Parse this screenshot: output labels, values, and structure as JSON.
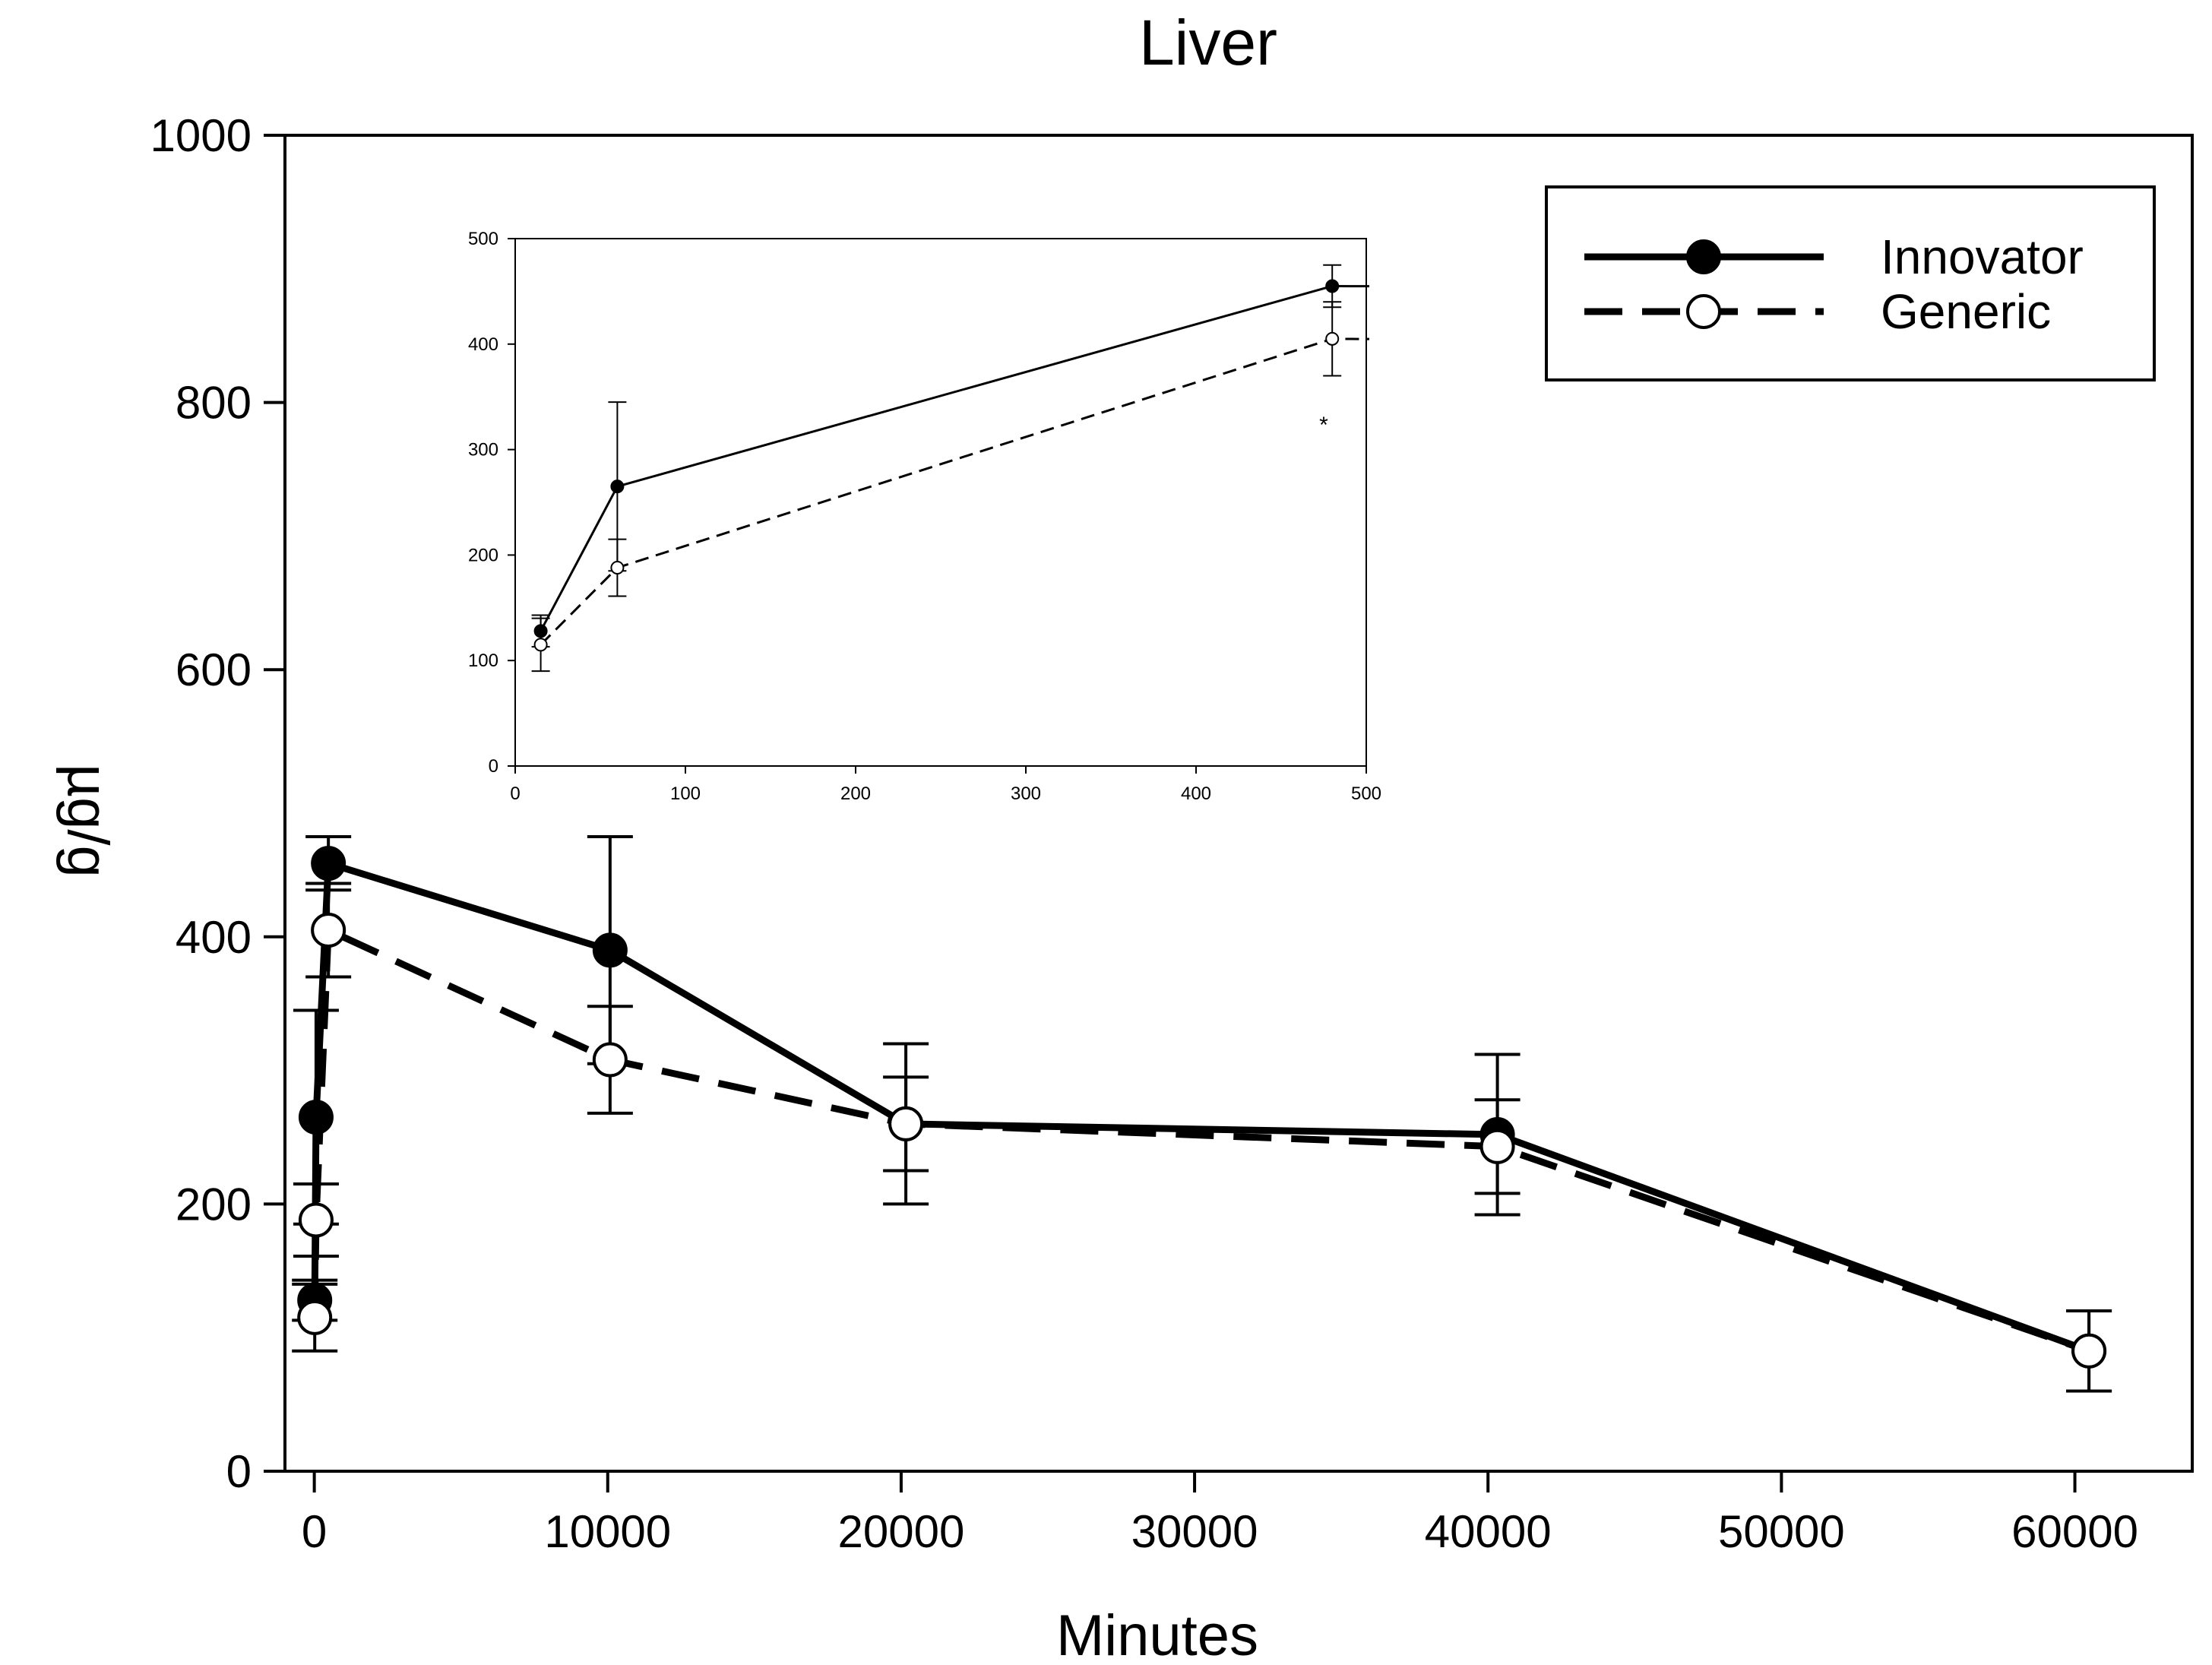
{
  "chart_data": {
    "type": "line",
    "title": "Liver",
    "xlabel": "Minutes",
    "ylabel": "µg/g",
    "xlim": [
      -1000,
      64000
    ],
    "ylim": [
      0,
      1000
    ],
    "xticks": [
      0,
      10000,
      20000,
      30000,
      40000,
      50000,
      60000
    ],
    "yticks": [
      0,
      200,
      400,
      600,
      800,
      1000
    ],
    "legend_position": "top-right",
    "series": [
      {
        "name": "Innovator",
        "style": "solid",
        "marker": "filled-circle",
        "x": [
          15,
          60,
          480,
          10080,
          20160,
          40320,
          60480
        ],
        "y": [
          128,
          265,
          455,
          390,
          260,
          252,
          90
        ],
        "err": [
          15,
          80,
          20,
          85,
          60,
          60,
          30
        ]
      },
      {
        "name": "Generic",
        "style": "dashed",
        "marker": "open-circle",
        "x": [
          15,
          60,
          480,
          10080,
          20160,
          40320,
          60480
        ],
        "y": [
          115,
          188,
          405,
          308,
          260,
          243,
          90
        ],
        "err": [
          25,
          27,
          35,
          40,
          35,
          35,
          30
        ]
      }
    ],
    "inset": {
      "xlim": [
        0,
        500
      ],
      "ylim": [
        0,
        500
      ],
      "xticks": [
        0,
        100,
        200,
        300,
        400,
        500
      ],
      "yticks": [
        0,
        100,
        200,
        300,
        400,
        500
      ],
      "annotation": "*",
      "annotation_x": 475,
      "annotation_y": 325
    }
  }
}
